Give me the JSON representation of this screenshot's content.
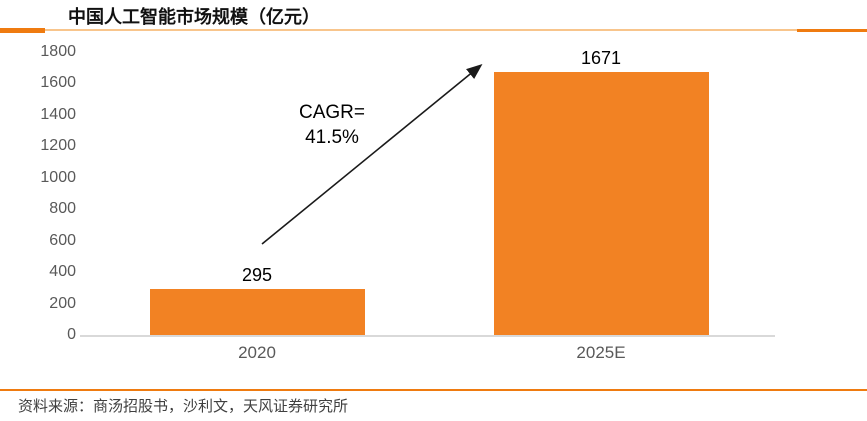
{
  "header": {
    "title": "中国人工智能市场规模（亿元）"
  },
  "chart_data": {
    "type": "bar",
    "title": "中国人工智能市场规模（亿元）",
    "categories": [
      "2020",
      "2025E"
    ],
    "values": [
      295,
      1671
    ],
    "value_labels": [
      "295",
      "1671"
    ],
    "annotation_lines": [
      "CAGR=",
      "41.5%"
    ],
    "ylim": [
      0,
      1800
    ],
    "ytick_step": 200,
    "grid": false,
    "legend": "none",
    "bar_color": "#F28223"
  },
  "footer": {
    "source": "资料来源：商汤招股书，沙利文，天风证券研究所"
  },
  "colors": {
    "bar": "#F28223",
    "dark_orange": "#EF7B10",
    "light_orange": "#F8C58C",
    "axis_gray": "#D9D9D9",
    "text_gray": "#595959"
  }
}
